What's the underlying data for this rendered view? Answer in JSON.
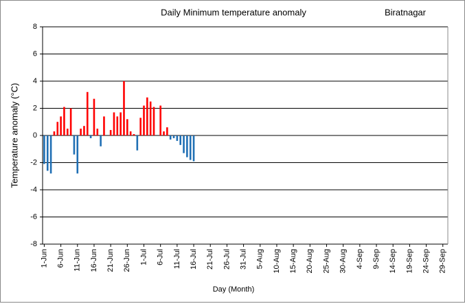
{
  "chart_data": {
    "type": "bar",
    "title": "Daily Minimum temperature  anomaly",
    "subtitle": "Biratnagar",
    "x_label": "Day (Month)",
    "y_label": "Temperature  anomaly (°C)",
    "categories": [
      "1-Jun",
      null,
      null,
      null,
      null,
      "6-Jun",
      null,
      null,
      null,
      null,
      "11-Jun",
      null,
      null,
      null,
      null,
      "16-Jun",
      null,
      null,
      null,
      null,
      "21-Jun",
      null,
      null,
      null,
      null,
      "26-Jun",
      null,
      null,
      null,
      null,
      "1-Jul",
      null,
      null,
      null,
      null,
      "6-Jul",
      null,
      null,
      null,
      null,
      "11-Jul",
      null,
      null,
      null,
      null,
      "16-Jul",
      null,
      null,
      null,
      null,
      "21-Jul",
      null,
      null,
      null,
      null,
      "26-Jul",
      null,
      null,
      null,
      null,
      "31-Jul",
      null,
      null,
      null,
      null,
      "5-Aug",
      null,
      null,
      null,
      null,
      "10-Aug",
      null,
      null,
      null,
      null,
      "15-Aug",
      null,
      null,
      null,
      null,
      "20-Aug",
      null,
      null,
      null,
      null,
      "25-Aug",
      null,
      null,
      null,
      null,
      "30-Aug",
      null,
      null,
      null,
      null,
      "4-Sep",
      null,
      null,
      null,
      null,
      "9-Sep",
      null,
      null,
      null,
      null,
      "14-Sep",
      null,
      null,
      null,
      null,
      "19-Sep",
      null,
      null,
      null,
      null,
      "24-Sep",
      null,
      null,
      null,
      null,
      "29-Sep",
      null
    ],
    "values": [
      -2.1,
      -2.6,
      -2.8,
      0.3,
      1.0,
      1.4,
      2.1,
      0.5,
      2.0,
      -1.4,
      -2.8,
      0.5,
      0.7,
      3.2,
      -0.2,
      2.7,
      0.5,
      -0.8,
      1.4,
      0,
      0.4,
      1.7,
      1.4,
      1.7,
      4.0,
      1.2,
      0.3,
      0.1,
      -1.1,
      1.3,
      2.2,
      2.8,
      2.5,
      2.1,
      0,
      2.2,
      0.3,
      0.6,
      -0.3,
      -0.2,
      -0.4,
      -0.7,
      -1.3,
      -1.6,
      -1.8,
      -1.9,
      null,
      null,
      null,
      null,
      null,
      null,
      null,
      null,
      null,
      null,
      null,
      null,
      null,
      null,
      null,
      null,
      null,
      null,
      null,
      null,
      null,
      null,
      null,
      null,
      null,
      null,
      null,
      null,
      null,
      null,
      null,
      null,
      null,
      null,
      null,
      null,
      null,
      null,
      null,
      null,
      null,
      null,
      null,
      null,
      null,
      null,
      null,
      null,
      null,
      null,
      null,
      null,
      null,
      null,
      null,
      null,
      null,
      null,
      null,
      null,
      null,
      null,
      null,
      null,
      null,
      null,
      null,
      null,
      null,
      null,
      null,
      null,
      null,
      null,
      null,
      null
    ],
    "positive_color": "#ff0000",
    "negative_color": "#1f6fb4",
    "ylim": [
      -8,
      8
    ],
    "yticks": [
      -8,
      -6,
      -4,
      -2,
      0,
      2,
      4,
      6,
      8
    ],
    "grid": true
  }
}
